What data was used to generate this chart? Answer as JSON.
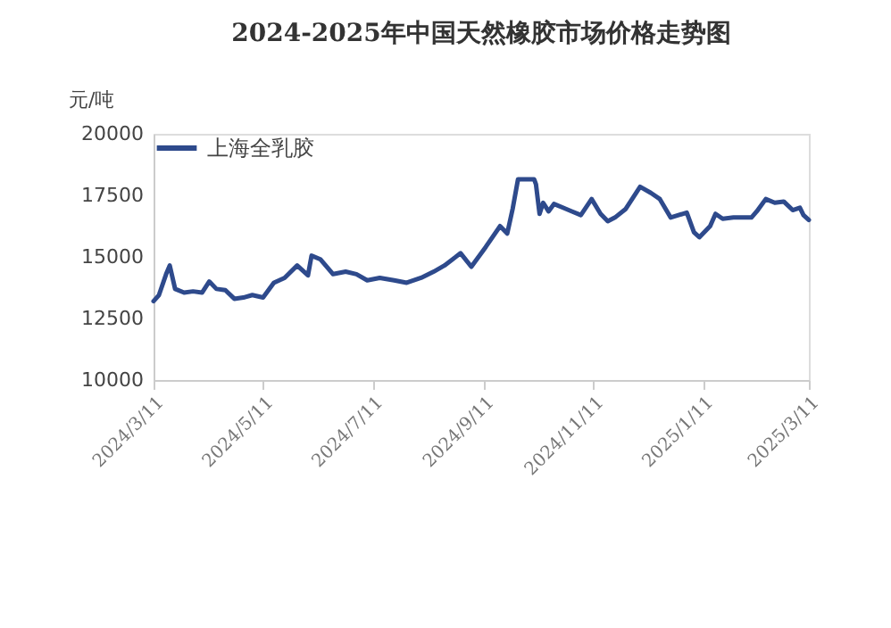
{
  "chart_data": {
    "type": "line",
    "title": "2024-2025年中国天然橡胶市场价格走势图",
    "ylabel": "元/吨",
    "xlim": [
      "2024-03-11",
      "2025-03-11"
    ],
    "xticks": [
      {
        "value": "2024-03-11",
        "label": "2024/3/11"
      },
      {
        "value": "2024-05-11",
        "label": "2024/5/11"
      },
      {
        "value": "2024-07-11",
        "label": "2024/7/11"
      },
      {
        "value": "2024-09-11",
        "label": "2024/9/11"
      },
      {
        "value": "2024-11-11",
        "label": "2024/11/11"
      },
      {
        "value": "2025-01-11",
        "label": "2025/1/11"
      },
      {
        "value": "2025-03-11",
        "label": "2025/3/11"
      }
    ],
    "ylim": [
      10000,
      20000
    ],
    "yticks": [
      10000,
      12500,
      15000,
      17500,
      20000
    ],
    "grid": false,
    "legend": "top",
    "marker": "none",
    "line_style": "solid",
    "series": [
      {
        "name": "上海全乳胶",
        "color": "#2e4a8c",
        "x": [
          "2024-03-11",
          "2024-03-14",
          "2024-03-18",
          "2024-03-20",
          "2024-03-23",
          "2024-03-28",
          "2024-04-02",
          "2024-04-07",
          "2024-04-11",
          "2024-04-15",
          "2024-04-20",
          "2024-04-25",
          "2024-04-30",
          "2024-05-05",
          "2024-05-11",
          "2024-05-17",
          "2024-05-23",
          "2024-05-30",
          "2024-06-05",
          "2024-06-07",
          "2024-06-12",
          "2024-06-19",
          "2024-06-26",
          "2024-07-02",
          "2024-07-08",
          "2024-07-15",
          "2024-07-23",
          "2024-07-30",
          "2024-08-07",
          "2024-08-14",
          "2024-08-20",
          "2024-08-29",
          "2024-09-04",
          "2024-09-12",
          "2024-09-20",
          "2024-09-24",
          "2024-09-27",
          "2024-09-30",
          "2024-10-09",
          "2024-10-10",
          "2024-10-12",
          "2024-10-14",
          "2024-10-17",
          "2024-10-20",
          "2024-10-25",
          "2024-10-30",
          "2024-11-04",
          "2024-11-10",
          "2024-11-15",
          "2024-11-19",
          "2024-11-23",
          "2024-11-29",
          "2024-12-07",
          "2024-12-13",
          "2024-12-18",
          "2024-12-24",
          "2025-01-02",
          "2025-01-06",
          "2025-01-09",
          "2025-01-15",
          "2025-01-18",
          "2025-01-22",
          "2025-01-28",
          "2025-02-07",
          "2025-02-10",
          "2025-02-15",
          "2025-02-20",
          "2025-02-25",
          "2025-03-02",
          "2025-03-06",
          "2025-03-08",
          "2025-03-11"
        ],
        "values": [
          13200,
          13450,
          14300,
          14650,
          13700,
          13550,
          13600,
          13550,
          14000,
          13700,
          13650,
          13300,
          13350,
          13450,
          13350,
          13950,
          14150,
          14650,
          14250,
          15050,
          14900,
          14300,
          14400,
          14300,
          14050,
          14150,
          14050,
          13950,
          14150,
          14400,
          14650,
          15150,
          14600,
          15400,
          16250,
          15950,
          16950,
          18150,
          18150,
          17950,
          16750,
          17200,
          16850,
          17150,
          17000,
          16850,
          16700,
          17350,
          16750,
          16450,
          16600,
          16950,
          17850,
          17600,
          17350,
          16600,
          16800,
          16000,
          15800,
          16250,
          16750,
          16550,
          16600,
          16600,
          16850,
          17350,
          17200,
          17250,
          16900,
          17000,
          16700,
          16500
        ]
      }
    ]
  }
}
